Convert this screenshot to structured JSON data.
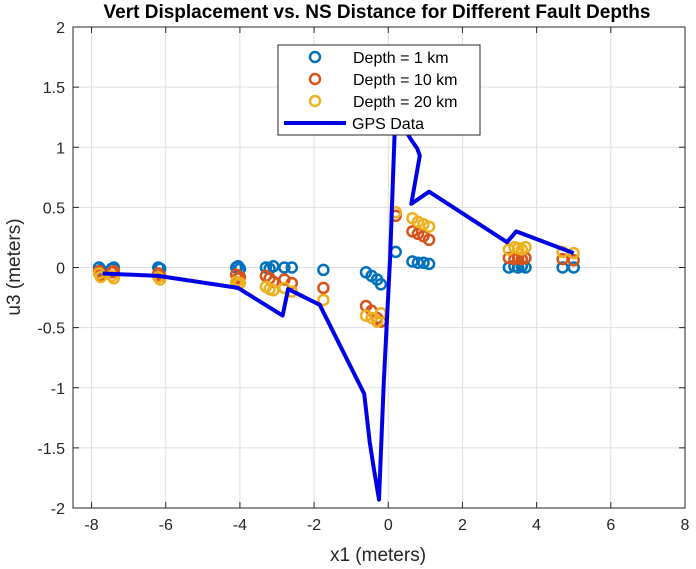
{
  "chart_data": {
    "type": "scatter",
    "title": "Vert Displacement vs. NS Distance for Different Fault Depths",
    "xlabel": "x1 (meters)",
    "ylabel": "u3 (meters)",
    "xlim": [
      -8.5,
      8
    ],
    "ylim": [
      -2,
      2
    ],
    "x_ticks": [
      -8,
      -6,
      -4,
      -2,
      0,
      2,
      4,
      6,
      8
    ],
    "y_ticks": [
      -2,
      -1.5,
      -1,
      -0.5,
      0,
      0.5,
      1,
      1.5,
      2
    ],
    "x_tick_labels": [
      "-8",
      "-6",
      "-4",
      "-2",
      "0",
      "2",
      "4",
      "6",
      "8"
    ],
    "y_tick_labels": [
      "-2",
      "-1.5",
      "-1",
      "-0.5",
      "0",
      "0.5",
      "1",
      "1.5",
      "2"
    ],
    "grid": true,
    "legend_position": "top-center",
    "series": [
      {
        "name": "Depth = 1 km",
        "kind": "marker",
        "color": "#0072BD",
        "points": [
          [
            -7.8,
            0
          ],
          [
            -7.75,
            -0.02
          ],
          [
            -7.45,
            -0.01
          ],
          [
            -7.4,
            0
          ],
          [
            -6.2,
            0
          ],
          [
            -6.15,
            -0.01
          ],
          [
            -4.1,
            0
          ],
          [
            -4.05,
            0.01
          ],
          [
            -4.0,
            -0.01
          ],
          [
            -3.3,
            0
          ],
          [
            -3.2,
            -0.01
          ],
          [
            -3.1,
            0.01
          ],
          [
            -2.8,
            0
          ],
          [
            -2.6,
            0
          ],
          [
            -1.75,
            -0.02
          ],
          [
            -0.6,
            -0.04
          ],
          [
            -0.45,
            -0.07
          ],
          [
            -0.3,
            -0.1
          ],
          [
            -0.2,
            -0.14
          ],
          [
            0.2,
            0.13
          ],
          [
            0.65,
            0.05
          ],
          [
            0.8,
            0.04
          ],
          [
            0.95,
            0.04
          ],
          [
            1.1,
            0.03
          ],
          [
            3.25,
            0
          ],
          [
            3.4,
            0.01
          ],
          [
            3.5,
            0
          ],
          [
            3.6,
            0.01
          ],
          [
            3.7,
            0
          ],
          [
            4.7,
            0
          ],
          [
            5.0,
            0
          ]
        ]
      },
      {
        "name": "Depth = 10 km",
        "kind": "marker",
        "color": "#D95319",
        "points": [
          [
            -7.8,
            -0.03
          ],
          [
            -7.75,
            -0.06
          ],
          [
            -7.45,
            -0.04
          ],
          [
            -7.4,
            -0.03
          ],
          [
            -6.2,
            -0.05
          ],
          [
            -6.15,
            -0.07
          ],
          [
            -4.1,
            -0.06
          ],
          [
            -4.05,
            -0.09
          ],
          [
            -4.0,
            -0.08
          ],
          [
            -3.3,
            -0.07
          ],
          [
            -3.2,
            -0.09
          ],
          [
            -3.1,
            -0.12
          ],
          [
            -2.8,
            -0.1
          ],
          [
            -2.6,
            -0.13
          ],
          [
            -1.75,
            -0.17
          ],
          [
            -0.6,
            -0.32
          ],
          [
            -0.45,
            -0.36
          ],
          [
            -0.3,
            -0.42
          ],
          [
            -0.2,
            -0.45
          ],
          [
            0.2,
            0.43
          ],
          [
            0.65,
            0.3
          ],
          [
            0.8,
            0.28
          ],
          [
            0.95,
            0.26
          ],
          [
            1.1,
            0.23
          ],
          [
            3.25,
            0.08
          ],
          [
            3.4,
            0.07
          ],
          [
            3.5,
            0.08
          ],
          [
            3.6,
            0.07
          ],
          [
            3.7,
            0.08
          ],
          [
            4.7,
            0.07
          ],
          [
            5.0,
            0.06
          ]
        ]
      },
      {
        "name": "Depth = 20 km",
        "kind": "marker",
        "color": "#EDB120",
        "points": [
          [
            -7.8,
            -0.05
          ],
          [
            -7.75,
            -0.08
          ],
          [
            -7.45,
            -0.07
          ],
          [
            -7.4,
            -0.09
          ],
          [
            -6.2,
            -0.08
          ],
          [
            -6.15,
            -0.1
          ],
          [
            -4.1,
            -0.12
          ],
          [
            -4.05,
            -0.14
          ],
          [
            -4.0,
            -0.13
          ],
          [
            -3.3,
            -0.16
          ],
          [
            -3.2,
            -0.18
          ],
          [
            -3.1,
            -0.19
          ],
          [
            -2.8,
            -0.17
          ],
          [
            -2.6,
            -0.2
          ],
          [
            -1.75,
            -0.27
          ],
          [
            -0.6,
            -0.4
          ],
          [
            -0.45,
            -0.42
          ],
          [
            -0.3,
            -0.45
          ],
          [
            -0.2,
            -0.38
          ],
          [
            0.2,
            0.46
          ],
          [
            0.65,
            0.41
          ],
          [
            0.8,
            0.38
          ],
          [
            0.95,
            0.36
          ],
          [
            1.1,
            0.34
          ],
          [
            3.25,
            0.15
          ],
          [
            3.4,
            0.17
          ],
          [
            3.5,
            0.16
          ],
          [
            3.6,
            0.15
          ],
          [
            3.7,
            0.17
          ],
          [
            4.7,
            0.13
          ],
          [
            5.0,
            0.12
          ]
        ]
      },
      {
        "name": "GPS Data",
        "kind": "line",
        "color": "#0000E6",
        "points": [
          [
            -7.7,
            -0.05
          ],
          [
            -6.2,
            -0.07
          ],
          [
            -4.05,
            -0.17
          ],
          [
            -2.85,
            -0.4
          ],
          [
            -2.7,
            -0.18
          ],
          [
            -1.85,
            -0.31
          ],
          [
            -0.65,
            -1.05
          ],
          [
            -0.5,
            -1.45
          ],
          [
            -0.4,
            -1.65
          ],
          [
            -0.25,
            -1.93
          ],
          [
            -0.12,
            -0.95
          ],
          [
            0.05,
            0.08
          ],
          [
            0.18,
            1.18
          ],
          [
            0.3,
            1.36
          ],
          [
            0.45,
            1.15
          ],
          [
            0.6,
            1.07
          ],
          [
            0.78,
            0.99
          ],
          [
            0.85,
            0.93
          ],
          [
            0.62,
            0.53
          ],
          [
            1.1,
            0.63
          ],
          [
            3.2,
            0.21
          ],
          [
            3.45,
            0.3
          ],
          [
            5.0,
            0.12
          ]
        ]
      }
    ]
  }
}
